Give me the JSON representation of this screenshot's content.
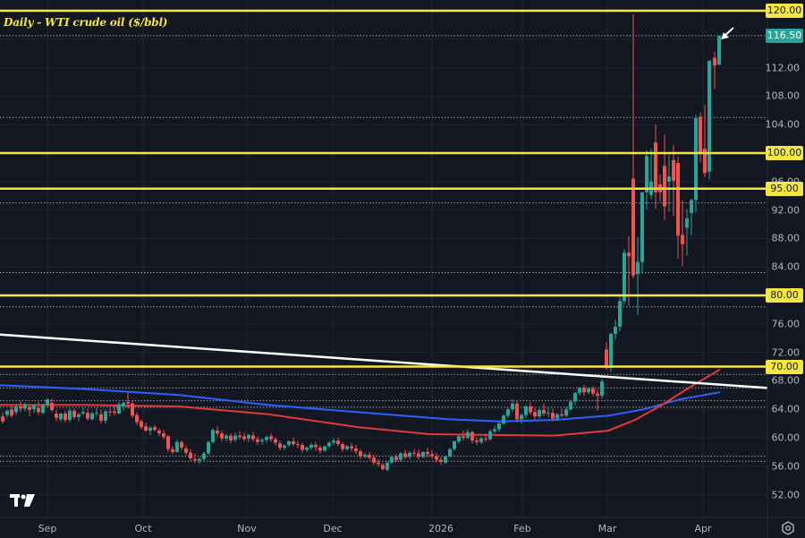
{
  "title": "Daily - WTI crude oil ($/bbl)",
  "colors": {
    "background": "#131722",
    "grid": "#1f2430",
    "up": "#26a69a",
    "down": "#ef5350",
    "horizontal_level": "#f5e642",
    "trendline": "#ffffff",
    "ma_fast": "#2962ff",
    "ma_slow": "#e53935",
    "dotted": "#c8cbd3"
  },
  "price_axis": {
    "ticks": [
      "112.00",
      "108.00",
      "104.00",
      "96.00",
      "92.00",
      "88.00",
      "84.00",
      "76.00",
      "72.00",
      "68.00",
      "64.00",
      "60.00",
      "56.00",
      "52.00"
    ],
    "level_tags": [
      "120.00",
      "100.00",
      "95.00",
      "80.00",
      "70.00"
    ],
    "last_price": "116.50"
  },
  "time_axis": {
    "labels": [
      "Sep",
      "Oct",
      "Nov",
      "Dec",
      "2026",
      "Feb",
      "Mar",
      "Apr"
    ]
  },
  "chart_data": {
    "type": "candlestick",
    "title": "Daily - WTI crude oil ($/bbl)",
    "xlabel": "",
    "ylabel": "$/bbl",
    "ylim": [
      50,
      121.5
    ],
    "x_ticks": [
      "Sep",
      "Oct",
      "Nov",
      "Dec",
      "2026",
      "Feb",
      "Mar",
      "Apr"
    ],
    "y_ticks": [
      52,
      56,
      60,
      64,
      68,
      72,
      76,
      80,
      84,
      88,
      92,
      96,
      100,
      104,
      108,
      112,
      116,
      120
    ],
    "last_price": 116.5,
    "horizontal_levels": [
      120,
      100,
      95,
      80,
      70
    ],
    "dotted_levels": [
      116.5,
      105.0,
      93.0,
      83.2,
      78.4,
      68.9,
      67.0,
      65.2,
      64.3,
      57.4,
      56.7
    ],
    "trendline": {
      "from": {
        "x": "late Aug",
        "y": 74.5
      },
      "to": {
        "x": "mid Apr",
        "y": 67.0
      }
    },
    "moving_averages": [
      {
        "name": "MA (blue)",
        "color": "#2962ff",
        "points": [
          [
            0,
            67.4
          ],
          [
            100,
            66.8
          ],
          [
            200,
            66.0
          ],
          [
            300,
            64.6
          ],
          [
            400,
            63.6
          ],
          [
            500,
            62.6
          ],
          [
            560,
            62.3
          ],
          [
            620,
            62.5
          ],
          [
            680,
            63.1
          ],
          [
            720,
            64.0
          ],
          [
            760,
            65.4
          ],
          [
            805,
            66.4
          ]
        ]
      },
      {
        "name": "MA (red)",
        "color": "#e53935",
        "points": [
          [
            0,
            64.6
          ],
          [
            100,
            64.6
          ],
          [
            200,
            64.4
          ],
          [
            300,
            63.3
          ],
          [
            400,
            61.5
          ],
          [
            480,
            60.5
          ],
          [
            540,
            60.4
          ],
          [
            620,
            60.3
          ],
          [
            680,
            61.0
          ],
          [
            710,
            62.5
          ],
          [
            740,
            64.6
          ],
          [
            770,
            67.0
          ],
          [
            805,
            69.6
          ]
        ]
      }
    ],
    "candles": [
      [
        3,
        63.0,
        63.6,
        62.3,
        62.0
      ],
      [
        8,
        63.2,
        64.0,
        63.8,
        62.8
      ],
      [
        13,
        64.0,
        64.6,
        63.1,
        62.8
      ],
      [
        18,
        63.6,
        64.7,
        64.4,
        63.2
      ],
      [
        23,
        64.4,
        65.1,
        64.1,
        63.6
      ],
      [
        28,
        64.1,
        64.9,
        64.7,
        63.7
      ],
      [
        33,
        64.3,
        64.6,
        63.9,
        63.0
      ],
      [
        38,
        64.0,
        64.7,
        64.6,
        63.5
      ],
      [
        43,
        64.2,
        65.0,
        63.6,
        63.2
      ],
      [
        48,
        63.5,
        64.8,
        64.6,
        63.3
      ],
      [
        53,
        64.6,
        65.5,
        65.4,
        64.3
      ],
      [
        58,
        64.9,
        65.5,
        63.9,
        63.6
      ],
      [
        63,
        63.4,
        63.9,
        62.8,
        62.3
      ],
      [
        68,
        62.6,
        63.5,
        63.4,
        62.3
      ],
      [
        73,
        63.4,
        63.8,
        62.5,
        62.1
      ],
      [
        78,
        62.5,
        64.1,
        63.8,
        62.2
      ],
      [
        83,
        63.8,
        64.1,
        62.9,
        62.6
      ],
      [
        88,
        62.9,
        63.5,
        63.3,
        62.3
      ],
      [
        93,
        63.4,
        64.2,
        63.6,
        63.2
      ],
      [
        98,
        63.5,
        64.1,
        62.7,
        62.4
      ],
      [
        103,
        62.6,
        63.7,
        63.4,
        62.4
      ],
      [
        108,
        63.4,
        64.2,
        63.5,
        63.0
      ],
      [
        113,
        63.3,
        64.0,
        62.4,
        62.0
      ],
      [
        118,
        62.4,
        64.0,
        63.7,
        62.0
      ],
      [
        123,
        63.7,
        64.2,
        63.6,
        63.0
      ],
      [
        128,
        63.7,
        64.5,
        63.5,
        63.1
      ],
      [
        133,
        63.4,
        65.0,
        64.7,
        63.3
      ],
      [
        138,
        64.4,
        65.1,
        64.9,
        63.8
      ],
      [
        143,
        65.0,
        66.3,
        64.8,
        64.1
      ],
      [
        148,
        64.8,
        65.2,
        63.1,
        62.8
      ],
      [
        153,
        63.2,
        63.6,
        62.2,
        61.8
      ],
      [
        158,
        62.3,
        62.6,
        61.5,
        61.2
      ],
      [
        163,
        61.6,
        62.1,
        61.0,
        60.8
      ],
      [
        168,
        61.0,
        61.6,
        61.4,
        60.4
      ],
      [
        173,
        61.5,
        61.8,
        61.1,
        60.9
      ],
      [
        178,
        61.0,
        61.4,
        60.6,
        60.2
      ],
      [
        183,
        60.6,
        61.1,
        60.1,
        59.8
      ],
      [
        188,
        60.2,
        60.4,
        58.4,
        58.0
      ],
      [
        193,
        58.4,
        58.8,
        58.0,
        57.7
      ],
      [
        198,
        58.0,
        59.7,
        59.4,
        57.9
      ],
      [
        203,
        59.4,
        59.6,
        58.6,
        58.2
      ],
      [
        208,
        58.5,
        58.9,
        57.9,
        57.5
      ],
      [
        213,
        57.9,
        58.4,
        57.1,
        56.8
      ],
      [
        218,
        57.0,
        57.8,
        56.8,
        56.5
      ],
      [
        223,
        56.8,
        57.3,
        57.0,
        56.3
      ],
      [
        228,
        57.0,
        58.0,
        57.8,
        56.8
      ],
      [
        233,
        57.8,
        59.6,
        59.4,
        57.6
      ],
      [
        238,
        59.4,
        61.3,
        61.1,
        59.2
      ],
      [
        243,
        61.0,
        61.6,
        60.6,
        60.1
      ],
      [
        248,
        60.6,
        61.0,
        59.9,
        59.5
      ],
      [
        253,
        59.9,
        60.6,
        60.3,
        59.5
      ],
      [
        258,
        60.3,
        60.6,
        59.6,
        59.2
      ],
      [
        263,
        59.7,
        60.7,
        60.3,
        59.4
      ],
      [
        268,
        60.3,
        60.9,
        60.1,
        59.7
      ],
      [
        273,
        60.2,
        60.7,
        59.8,
        59.5
      ],
      [
        278,
        59.9,
        60.5,
        60.4,
        59.4
      ],
      [
        283,
        60.3,
        60.8,
        59.8,
        59.5
      ],
      [
        288,
        59.8,
        60.2,
        59.4,
        59.0
      ],
      [
        293,
        59.5,
        59.9,
        59.7,
        59.0
      ],
      [
        298,
        59.7,
        60.3,
        60.1,
        59.3
      ],
      [
        303,
        60.2,
        60.6,
        59.8,
        59.4
      ],
      [
        308,
        59.8,
        60.1,
        59.3,
        58.9
      ],
      [
        313,
        59.2,
        59.6,
        58.6,
        58.2
      ],
      [
        318,
        58.6,
        59.1,
        58.9,
        58.3
      ],
      [
        323,
        59.0,
        59.6,
        59.5,
        58.7
      ],
      [
        328,
        59.5,
        60.0,
        59.1,
        58.8
      ],
      [
        333,
        59.1,
        59.6,
        59.0,
        58.5
      ],
      [
        338,
        59.0,
        59.3,
        58.3,
        57.9
      ],
      [
        343,
        58.3,
        58.8,
        58.6,
        58.0
      ],
      [
        348,
        58.6,
        59.3,
        59.0,
        58.4
      ],
      [
        353,
        59.0,
        59.4,
        58.7,
        58.2
      ],
      [
        358,
        58.6,
        59.0,
        58.2,
        57.8
      ],
      [
        363,
        58.2,
        58.9,
        58.8,
        58.0
      ],
      [
        368,
        58.8,
        59.5,
        59.3,
        58.6
      ],
      [
        373,
        59.3,
        59.9,
        59.6,
        59.0
      ],
      [
        378,
        59.6,
        60.0,
        59.1,
        58.8
      ],
      [
        383,
        59.1,
        59.4,
        58.4,
        58.0
      ],
      [
        388,
        58.4,
        59.0,
        58.8,
        58.2
      ],
      [
        393,
        58.8,
        59.3,
        58.5,
        58.1
      ],
      [
        398,
        58.5,
        59.0,
        58.1,
        57.7
      ],
      [
        403,
        58.1,
        58.4,
        57.4,
        57.0
      ],
      [
        408,
        57.4,
        57.9,
        57.6,
        57.1
      ],
      [
        413,
        57.6,
        58.0,
        57.2,
        56.9
      ],
      [
        418,
        57.2,
        57.6,
        56.5,
        56.2
      ],
      [
        423,
        56.5,
        57.0,
        56.3,
        55.9
      ],
      [
        428,
        56.2,
        56.5,
        55.6,
        55.4
      ],
      [
        433,
        55.5,
        56.7,
        56.5,
        55.3
      ],
      [
        438,
        56.5,
        57.5,
        57.3,
        56.3
      ],
      [
        443,
        57.3,
        57.7,
        56.9,
        56.6
      ],
      [
        448,
        56.9,
        58.0,
        57.8,
        56.6
      ],
      [
        453,
        57.8,
        58.3,
        57.3,
        57.0
      ],
      [
        458,
        57.3,
        58.1,
        57.9,
        57.0
      ],
      [
        463,
        57.9,
        58.4,
        57.8,
        57.4
      ],
      [
        468,
        57.8,
        58.3,
        57.3,
        56.9
      ],
      [
        473,
        57.3,
        58.1,
        58.0,
        57.1
      ],
      [
        478,
        58.0,
        58.6,
        57.7,
        57.3
      ],
      [
        483,
        57.7,
        58.3,
        57.4,
        57.0
      ],
      [
        488,
        57.4,
        57.9,
        56.9,
        56.5
      ],
      [
        493,
        56.9,
        57.3,
        56.6,
        56.2
      ],
      [
        498,
        56.5,
        57.5,
        57.4,
        56.3
      ],
      [
        503,
        57.4,
        58.6,
        58.4,
        57.2
      ],
      [
        508,
        58.4,
        59.6,
        59.5,
        58.2
      ],
      [
        513,
        59.5,
        60.4,
        60.2,
        59.2
      ],
      [
        518,
        60.2,
        61.0,
        60.0,
        59.6
      ],
      [
        523,
        60.0,
        61.2,
        60.8,
        59.8
      ],
      [
        528,
        60.8,
        61.0,
        59.6,
        59.2
      ],
      [
        533,
        59.6,
        60.1,
        59.4,
        59.0
      ],
      [
        538,
        59.4,
        60.2,
        59.9,
        59.1
      ],
      [
        543,
        59.9,
        60.6,
        59.8,
        59.4
      ],
      [
        548,
        59.8,
        61.2,
        60.9,
        59.6
      ],
      [
        553,
        60.9,
        61.7,
        61.2,
        60.6
      ],
      [
        558,
        61.2,
        62.2,
        62.0,
        60.8
      ],
      [
        563,
        62.0,
        63.3,
        63.1,
        61.8
      ],
      [
        568,
        63.1,
        64.3,
        64.0,
        62.8
      ],
      [
        573,
        64.0,
        65.4,
        64.8,
        63.6
      ],
      [
        578,
        64.8,
        65.2,
        62.6,
        62.2
      ],
      [
        583,
        62.6,
        63.4,
        63.2,
        62.0
      ],
      [
        588,
        63.2,
        64.6,
        64.4,
        62.8
      ],
      [
        593,
        64.4,
        65.0,
        63.6,
        63.2
      ],
      [
        598,
        63.6,
        64.2,
        63.0,
        62.6
      ],
      [
        603,
        63.0,
        64.1,
        63.9,
        62.7
      ],
      [
        608,
        63.9,
        64.8,
        63.4,
        63.0
      ],
      [
        613,
        63.4,
        64.2,
        63.5,
        62.9
      ],
      [
        618,
        63.5,
        64.1,
        62.7,
        62.3
      ],
      [
        623,
        62.7,
        63.5,
        63.3,
        62.4
      ],
      [
        628,
        63.3,
        64.1,
        63.1,
        62.9
      ],
      [
        633,
        63.1,
        64.3,
        64.0,
        62.9
      ],
      [
        638,
        64.0,
        65.4,
        65.1,
        63.8
      ],
      [
        643,
        65.1,
        66.4,
        66.3,
        64.6
      ],
      [
        648,
        66.3,
        67.2,
        67.0,
        65.9
      ],
      [
        653,
        67.0,
        67.4,
        66.4,
        65.9
      ],
      [
        658,
        66.4,
        67.1,
        66.9,
        66.1
      ],
      [
        663,
        66.9,
        67.3,
        66.2,
        65.8
      ],
      [
        668,
        66.2,
        66.8,
        65.9,
        63.8
      ],
      [
        673,
        65.9,
        68.3,
        67.9,
        65.5
      ],
      [
        678,
        72.4,
        73.4,
        69.8,
        69.6
      ],
      [
        683,
        69.8,
        74.8,
        74.6,
        69.3
      ],
      [
        688,
        74.6,
        76.6,
        75.6,
        73.8
      ],
      [
        693,
        75.6,
        79.7,
        79.2,
        75.0
      ],
      [
        698,
        79.2,
        86.5,
        86.0,
        78.7
      ],
      [
        703,
        86.0,
        88.3,
        85.5,
        78.6
      ],
      [
        708,
        96.4,
        119.5,
        82.8,
        82.4
      ],
      [
        713,
        83.0,
        88.2,
        84.7,
        77.2
      ],
      [
        718,
        84.7,
        91.0,
        94.5,
        83.1
      ],
      [
        723,
        94.5,
        100.4,
        99.6,
        92.1
      ],
      [
        728,
        94.1,
        100.6,
        96.0,
        93.5
      ],
      [
        733,
        101.5,
        104.0,
        94.5,
        92.2
      ],
      [
        738,
        95.6,
        97.0,
        94.5,
        93.2
      ],
      [
        743,
        98.2,
        102.6,
        92.5,
        90.6
      ],
      [
        748,
        96.0,
        99.8,
        96.7,
        91.8
      ],
      [
        753,
        99.0,
        101.1,
        96.1,
        91.2
      ],
      [
        758,
        98.6,
        99.5,
        88.4,
        85.2
      ],
      [
        763,
        88.5,
        93.3,
        87.2,
        84.1
      ],
      [
        768,
        89.5,
        92.1,
        90.8,
        85.6
      ],
      [
        773,
        91.6,
        93.6,
        93.4,
        88.4
      ],
      [
        778,
        93.4,
        105.4,
        104.9,
        91.7
      ],
      [
        783,
        105.1,
        105.7,
        99.9,
        98.7
      ],
      [
        788,
        100.6,
        106.8,
        97.2,
        96.6
      ],
      [
        793,
        97.4,
        112.6,
        113.0,
        96.3
      ],
      [
        799,
        113.4,
        114.2,
        112.3,
        109.0
      ],
      [
        804,
        112.4,
        116.5,
        116.5,
        112.4
      ]
    ]
  }
}
